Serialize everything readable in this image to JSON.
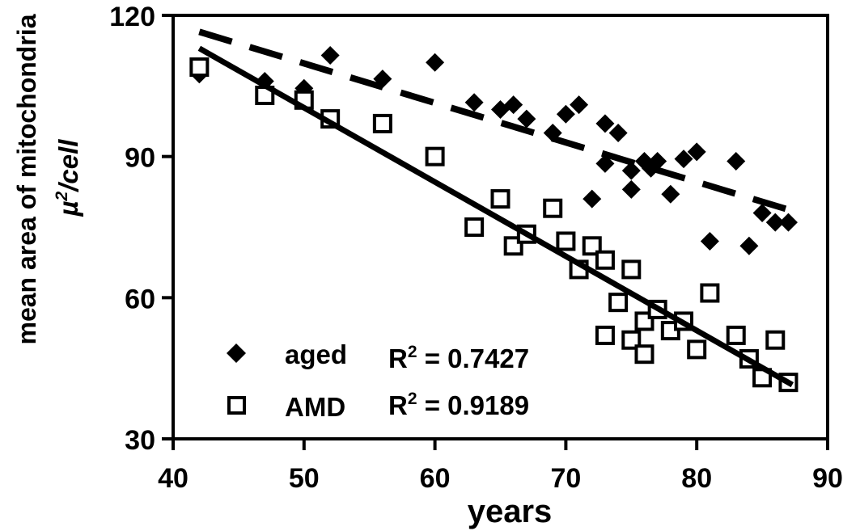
{
  "figure": {
    "background_color": "#ffffff",
    "foreground_color": "#000000"
  },
  "chart_data": {
    "type": "scatter",
    "title": "",
    "xlabel": "years",
    "ylabel_line1": "mean area of mitochondria",
    "ylabel_line2": "µ²/cell",
    "xlim": [
      40,
      90
    ],
    "ylim": [
      30,
      120
    ],
    "xticks": [
      "40",
      "50",
      "60",
      "70",
      "80",
      "90"
    ],
    "yticks": [
      "30",
      "60",
      "90",
      "120"
    ],
    "grid": false,
    "frame": "full-box",
    "legend_position": "inside-lower-left",
    "series": [
      {
        "name": "aged",
        "marker": "filled-diamond",
        "color": "#000000",
        "r_squared": 0.7427,
        "r2_text": "R² = 0.7427",
        "trendline": {
          "style": "dashed",
          "start": [
            42,
            116.5
          ],
          "end": [
            87.5,
            78.3
          ]
        },
        "points": [
          [
            42,
            107.5
          ],
          [
            47,
            106
          ],
          [
            50,
            104.5
          ],
          [
            52,
            111.5
          ],
          [
            56,
            106.5
          ],
          [
            60,
            110
          ],
          [
            63,
            101.5
          ],
          [
            65,
            100
          ],
          [
            66,
            101
          ],
          [
            67,
            98
          ],
          [
            69,
            95
          ],
          [
            70,
            99
          ],
          [
            71,
            101
          ],
          [
            72,
            81
          ],
          [
            73,
            97
          ],
          [
            73,
            88.5
          ],
          [
            74,
            95
          ],
          [
            75,
            87
          ],
          [
            75,
            83
          ],
          [
            76,
            89
          ],
          [
            76.5,
            87.5
          ],
          [
            77,
            89
          ],
          [
            78,
            82
          ],
          [
            79,
            89.5
          ],
          [
            80,
            91
          ],
          [
            81,
            72
          ],
          [
            83,
            89
          ],
          [
            84,
            71
          ],
          [
            85,
            78
          ],
          [
            86,
            76
          ],
          [
            87,
            76
          ]
        ]
      },
      {
        "name": "AMD",
        "marker": "open-square",
        "color": "#000000",
        "r_squared": 0.9189,
        "r2_text": "R² = 0.9189",
        "trendline": {
          "style": "solid",
          "start": [
            42,
            113
          ],
          "end": [
            87.3,
            41.5
          ]
        },
        "points": [
          [
            42,
            109
          ],
          [
            47,
            103
          ],
          [
            50,
            102
          ],
          [
            52,
            98
          ],
          [
            56,
            97
          ],
          [
            60,
            90
          ],
          [
            63,
            75
          ],
          [
            65,
            81
          ],
          [
            66,
            71
          ],
          [
            67,
            73.5
          ],
          [
            69,
            79
          ],
          [
            70,
            72
          ],
          [
            71,
            66
          ],
          [
            72,
            71
          ],
          [
            73,
            68
          ],
          [
            73,
            52
          ],
          [
            74,
            59
          ],
          [
            75,
            66
          ],
          [
            75,
            51
          ],
          [
            76,
            55
          ],
          [
            76,
            48
          ],
          [
            77,
            57.5
          ],
          [
            78,
            53
          ],
          [
            79,
            55
          ],
          [
            80,
            49
          ],
          [
            81,
            61
          ],
          [
            83,
            52
          ],
          [
            84,
            47
          ],
          [
            85,
            43
          ],
          [
            86,
            51
          ],
          [
            87,
            42
          ]
        ]
      }
    ]
  },
  "legend": {
    "entries": [
      {
        "label": "aged",
        "marker": "filled-diamond",
        "r2_text": "R² = 0.7427"
      },
      {
        "label": "AMD",
        "marker": "open-square",
        "r2_text": "R² = 0.9189"
      }
    ]
  }
}
